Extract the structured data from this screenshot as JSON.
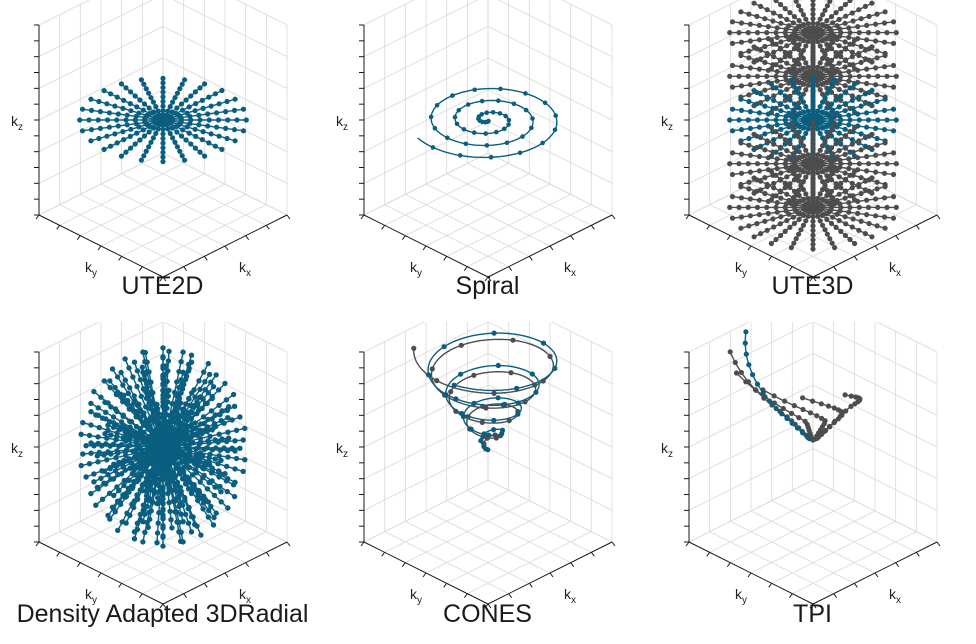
{
  "panels": [
    {
      "id": "ute2d",
      "title": "UTE2D",
      "axes": {
        "x": "k",
        "x_sub": "x",
        "y": "k",
        "y_sub": "y",
        "z": "k",
        "z_sub": "z"
      },
      "trajectory": "2D radial spokes",
      "colors": {
        "primary": "#0a5f80"
      }
    },
    {
      "id": "spiral",
      "title": "Spiral",
      "axes": {
        "x": "k",
        "x_sub": "x",
        "y": "k",
        "y_sub": "y",
        "z": "k",
        "z_sub": "z"
      },
      "trajectory": "2D spiral",
      "colors": {
        "primary": "#0a5f80"
      }
    },
    {
      "id": "ute3d",
      "title": "UTE3D",
      "axes": {
        "x": "k",
        "x_sub": "x",
        "y": "k",
        "y_sub": "y",
        "z": "k",
        "z_sub": "z"
      },
      "trajectory": "stacked radial",
      "colors": {
        "primary": "#0a5f80",
        "secondary": "#4d4d4d"
      }
    },
    {
      "id": "da3dr",
      "title": "Density Adapted 3DRadial",
      "axes": {
        "x": "k",
        "x_sub": "x",
        "y": "k",
        "y_sub": "y",
        "z": "k",
        "z_sub": "z"
      },
      "trajectory": "3D radial",
      "colors": {
        "primary": "#0a5f80"
      }
    },
    {
      "id": "cones",
      "title": "CONES",
      "axes": {
        "x": "k",
        "x_sub": "x",
        "y": "k",
        "y_sub": "y",
        "z": "k",
        "z_sub": "z"
      },
      "trajectory": "cones",
      "colors": {
        "primary": "#0a5f80",
        "secondary": "#4d4d4d"
      }
    },
    {
      "id": "tpi",
      "title": "TPI",
      "axes": {
        "x": "k",
        "x_sub": "x",
        "y": "k",
        "y_sub": "y",
        "z": "k",
        "z_sub": "z"
      },
      "trajectory": "twisted projection",
      "colors": {
        "primary": "#0a5f80",
        "secondary": "#4d4d4d"
      }
    }
  ]
}
